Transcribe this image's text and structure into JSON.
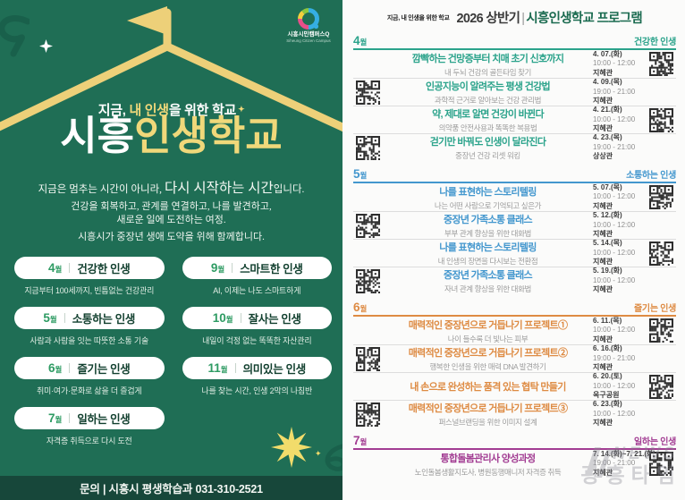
{
  "poster": {
    "colors": {
      "bg": "#1F6E55",
      "footer_bg": "#17473A",
      "yellow": "#F0D87A",
      "pill_month_green": "#2E9B63",
      "pill_label_green": "#12402F"
    },
    "logo": {
      "kr": "시흥시민캠퍼스Q",
      "en": "Siheung Citizen Campus"
    },
    "tagline": {
      "pre": "지금, ",
      "em": "내 인생",
      "post": "을 위한 학교",
      "spark": "✦"
    },
    "title": {
      "white": "시흥",
      "yellow": "인생학교"
    },
    "lead": {
      "pre": "지금은 멈추는 시간이 아니라, ",
      "em": "다시 시작하는 시간",
      "post": "입니다."
    },
    "body_line1": "건강을 회복하고, 관계를 연결하고, 나를 발견하고,",
    "body_line2": "새로운 일에 도전하는 여정.",
    "body_line3": "시흥시가 중장년 생애 도약을 위해 함께합니다.",
    "month_columns": [
      [
        {
          "num": "4",
          "unit": "월",
          "label": "건강한 인생",
          "caption": "지금부터 100세까지, 빈틈없는 건강관리"
        },
        {
          "num": "5",
          "unit": "월",
          "label": "소통하는 인생",
          "caption": "사람과 사람을 잇는 따뜻한 소통 기술"
        },
        {
          "num": "6",
          "unit": "월",
          "label": "즐기는 인생",
          "caption": "취미·여가·문화로 삶을 더 즐겁게"
        },
        {
          "num": "7",
          "unit": "월",
          "label": "일하는 인생",
          "caption": "자격증 취득으로 다시 도전"
        }
      ],
      [
        {
          "num": "9",
          "unit": "월",
          "label": "스마트한 인생",
          "caption": "AI, 이제는 나도 스마트하게"
        },
        {
          "num": "10",
          "unit": "월",
          "label": "잘사는 인생",
          "caption": "내일이 걱정 없는 똑똑한 자산관리"
        },
        {
          "num": "11",
          "unit": "월",
          "label": "의미있는 인생",
          "caption": "나를 찾는 시간, 인생 2막의 나침반"
        }
      ]
    ],
    "footer": "문의 | 시흥시 평생학습과 031-310-2521"
  },
  "schedule": {
    "tagline": "지금, 내 인생을 위한 학교",
    "title_prefix": "2026 상반기",
    "title_divider": "|",
    "title_main": "시흥인생학교 프로그램",
    "sections": [
      {
        "month": "4",
        "unit": "월",
        "theme": "건강한 인생",
        "color": "#2BA38B",
        "rows": [
          {
            "title": "깜빡하는 건망증부터 치매 초기 신호까지",
            "subtitle": "내 두뇌 건강의 골든타임 찾기",
            "date": "4. 07.(화)",
            "time": "10:00 - 12:00",
            "venue": "지혜관",
            "qr": "right"
          },
          {
            "title": "인공지능이 알려주는 평생 건강법",
            "subtitle": "과학적 근거로 알아보는 건강 관리법",
            "date": "4. 09.(목)",
            "time": "19:00 - 21:00",
            "venue": "지혜관",
            "qr": "left"
          },
          {
            "title": "약, 제대로 알면 건강이 바뀐다",
            "subtitle": "의약품 안전사용과 똑똑한 복용법",
            "date": "4. 21.(화)",
            "time": "10:00 - 12:00",
            "venue": "지혜관",
            "qr": "right"
          },
          {
            "title": "걷기만 바꿔도 인생이 달라진다",
            "subtitle": "중장년 건강 리셋 워킹",
            "date": "4. 23.(목)",
            "time": "19:00 - 21:00",
            "venue": "상상관",
            "qr": "left"
          }
        ]
      },
      {
        "month": "5",
        "unit": "월",
        "theme": "소통하는 인생",
        "color": "#4397CE",
        "rows": [
          {
            "title": "나를 표현하는 스토리텔링",
            "subtitle": "나는 어떤 사람으로 기억되고 싶은가",
            "date": "5. 07.(목)",
            "time": "10:00 - 12:00",
            "venue": "지혜관",
            "qr": "right"
          },
          {
            "title": "중장년 가족소통 클래스",
            "subtitle": "부부 관계 향상을 위한 대화법",
            "date": "5. 12.(화)",
            "time": "10:00 - 12:00",
            "venue": "지혜관",
            "qr": "left"
          },
          {
            "title": "나를 표현하는 스토리텔링",
            "subtitle": "내 인생의 장면을 다시보는 전환점",
            "date": "5. 14.(목)",
            "time": "10:00 - 12:00",
            "venue": "지혜관",
            "qr": "right"
          },
          {
            "title": "중장년 가족소통 클래스",
            "subtitle": "자녀 관계 향상을 위한 대화법",
            "date": "5. 19.(화)",
            "time": "10:00 - 12:00",
            "venue": "지혜관",
            "qr": "left"
          }
        ]
      },
      {
        "month": "6",
        "unit": "월",
        "theme": "즐기는 인생",
        "color": "#DE8B43",
        "rows": [
          {
            "title": "매력적인 중장년으로 거듭나기 프로젝트①",
            "subtitle": "나이 들수록 더 빛나는 피부",
            "date": "6. 11.(목)",
            "time": "10:00 - 12:00",
            "venue": "지혜관",
            "qr": "right"
          },
          {
            "title": "매력적인 중장년으로 거듭나기 프로젝트②",
            "subtitle": "행복한 인생을 위한 매력 DNA 발견하기",
            "date": "6. 16.(화)",
            "time": "19:00 - 21:00",
            "venue": "지혜관",
            "qr": "left"
          },
          {
            "title": "내 손으로 완성하는 품격 있는 협탁 만들기",
            "subtitle": "",
            "date": "6. 20.(토)",
            "time": "10:00 - 12:00",
            "venue": "옥구공원",
            "qr": "right"
          },
          {
            "title": "매력적인 중장년으로 거듭나기 프로젝트③",
            "subtitle": "퍼스널브랜딩을 위한 이미지 설계",
            "date": "6. 23.(화)",
            "time": "10:00 - 12:00",
            "venue": "지혜관",
            "qr": "left"
          }
        ]
      },
      {
        "month": "7",
        "unit": "월",
        "theme": "일하는 인생",
        "color": "#A23C92",
        "rows": [
          {
            "title": "통합돌봄관리사 양성과정",
            "subtitle": "노인돌봄생활지도사, 병원동행매니저 자격증 취득",
            "date": "7. 14.(화)~7. 21.(화)",
            "time": "19:00 - 21:00",
            "venue": "지혜관",
            "qr": "right"
          }
        ]
      }
    ],
    "watermark": {
      "line1": "NEWS",
      "line2": "광흥타임"
    }
  }
}
